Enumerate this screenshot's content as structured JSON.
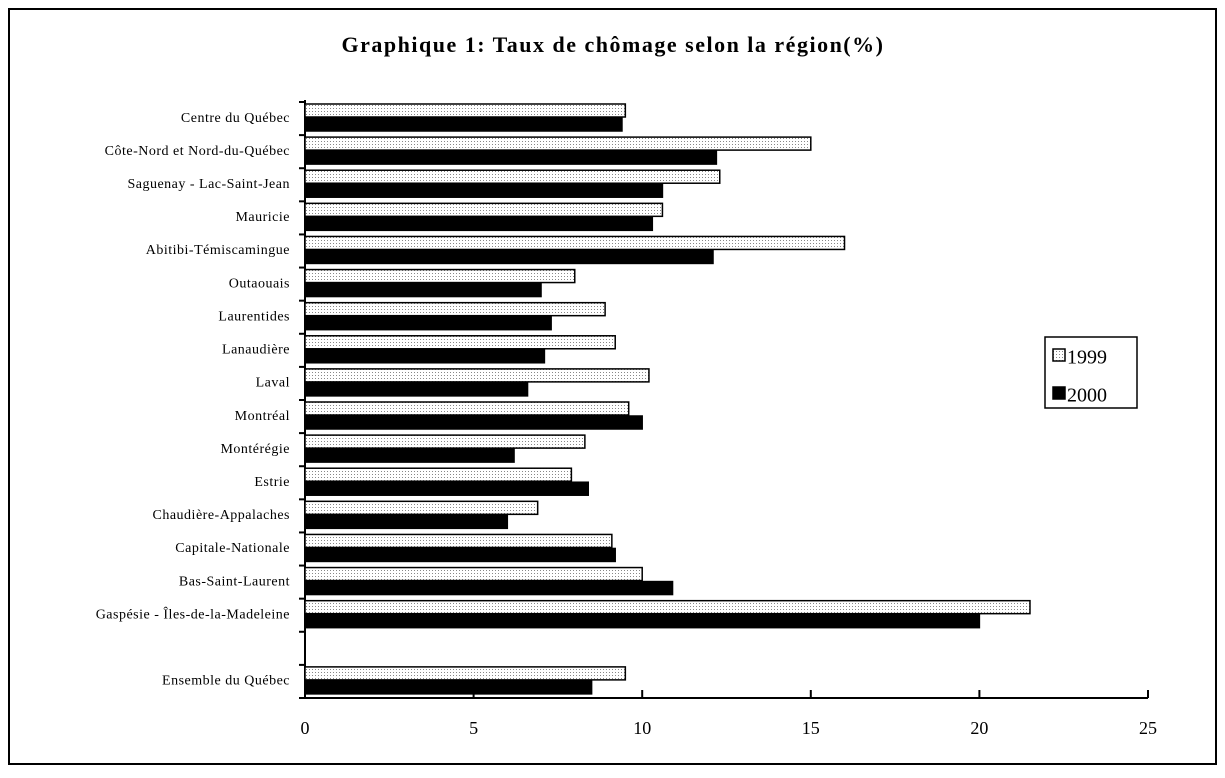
{
  "chart_data": {
    "type": "bar",
    "orientation": "horizontal",
    "title": "Graphique 1: Taux de chômage selon la région(%)",
    "categories": [
      "Centre du Québec",
      "Côte-Nord et Nord-du-Québec",
      "Saguenay - Lac-Saint-Jean",
      "Mauricie",
      "Abitibi-Témiscamingue",
      "Outaouais",
      "Laurentides",
      "Lanaudière",
      "Laval",
      "Montréal",
      "Montérégie",
      "Estrie",
      "Chaudière-Appalaches",
      "Capitale-Nationale",
      "Bas-Saint-Laurent",
      "Gaspésie - Îles-de-la-Madeleine",
      null,
      "Ensemble du Québec"
    ],
    "series": [
      {
        "name": "1999",
        "color": "#dcdcdc",
        "values": [
          9.5,
          15.0,
          12.3,
          10.6,
          16.0,
          8.0,
          8.9,
          9.2,
          10.2,
          9.6,
          8.3,
          7.9,
          6.9,
          9.1,
          10.0,
          21.5,
          null,
          9.5
        ]
      },
      {
        "name": "2000",
        "color": "#000000",
        "values": [
          9.4,
          12.2,
          10.6,
          10.3,
          12.1,
          7.0,
          7.3,
          7.1,
          6.6,
          10.0,
          6.2,
          8.4,
          6.0,
          9.2,
          10.9,
          20.0,
          null,
          8.5
        ]
      }
    ],
    "xlim": [
      0,
      25
    ],
    "xticks": [
      0,
      5,
      10,
      15,
      20,
      25
    ],
    "grid": false,
    "legend": "right"
  }
}
